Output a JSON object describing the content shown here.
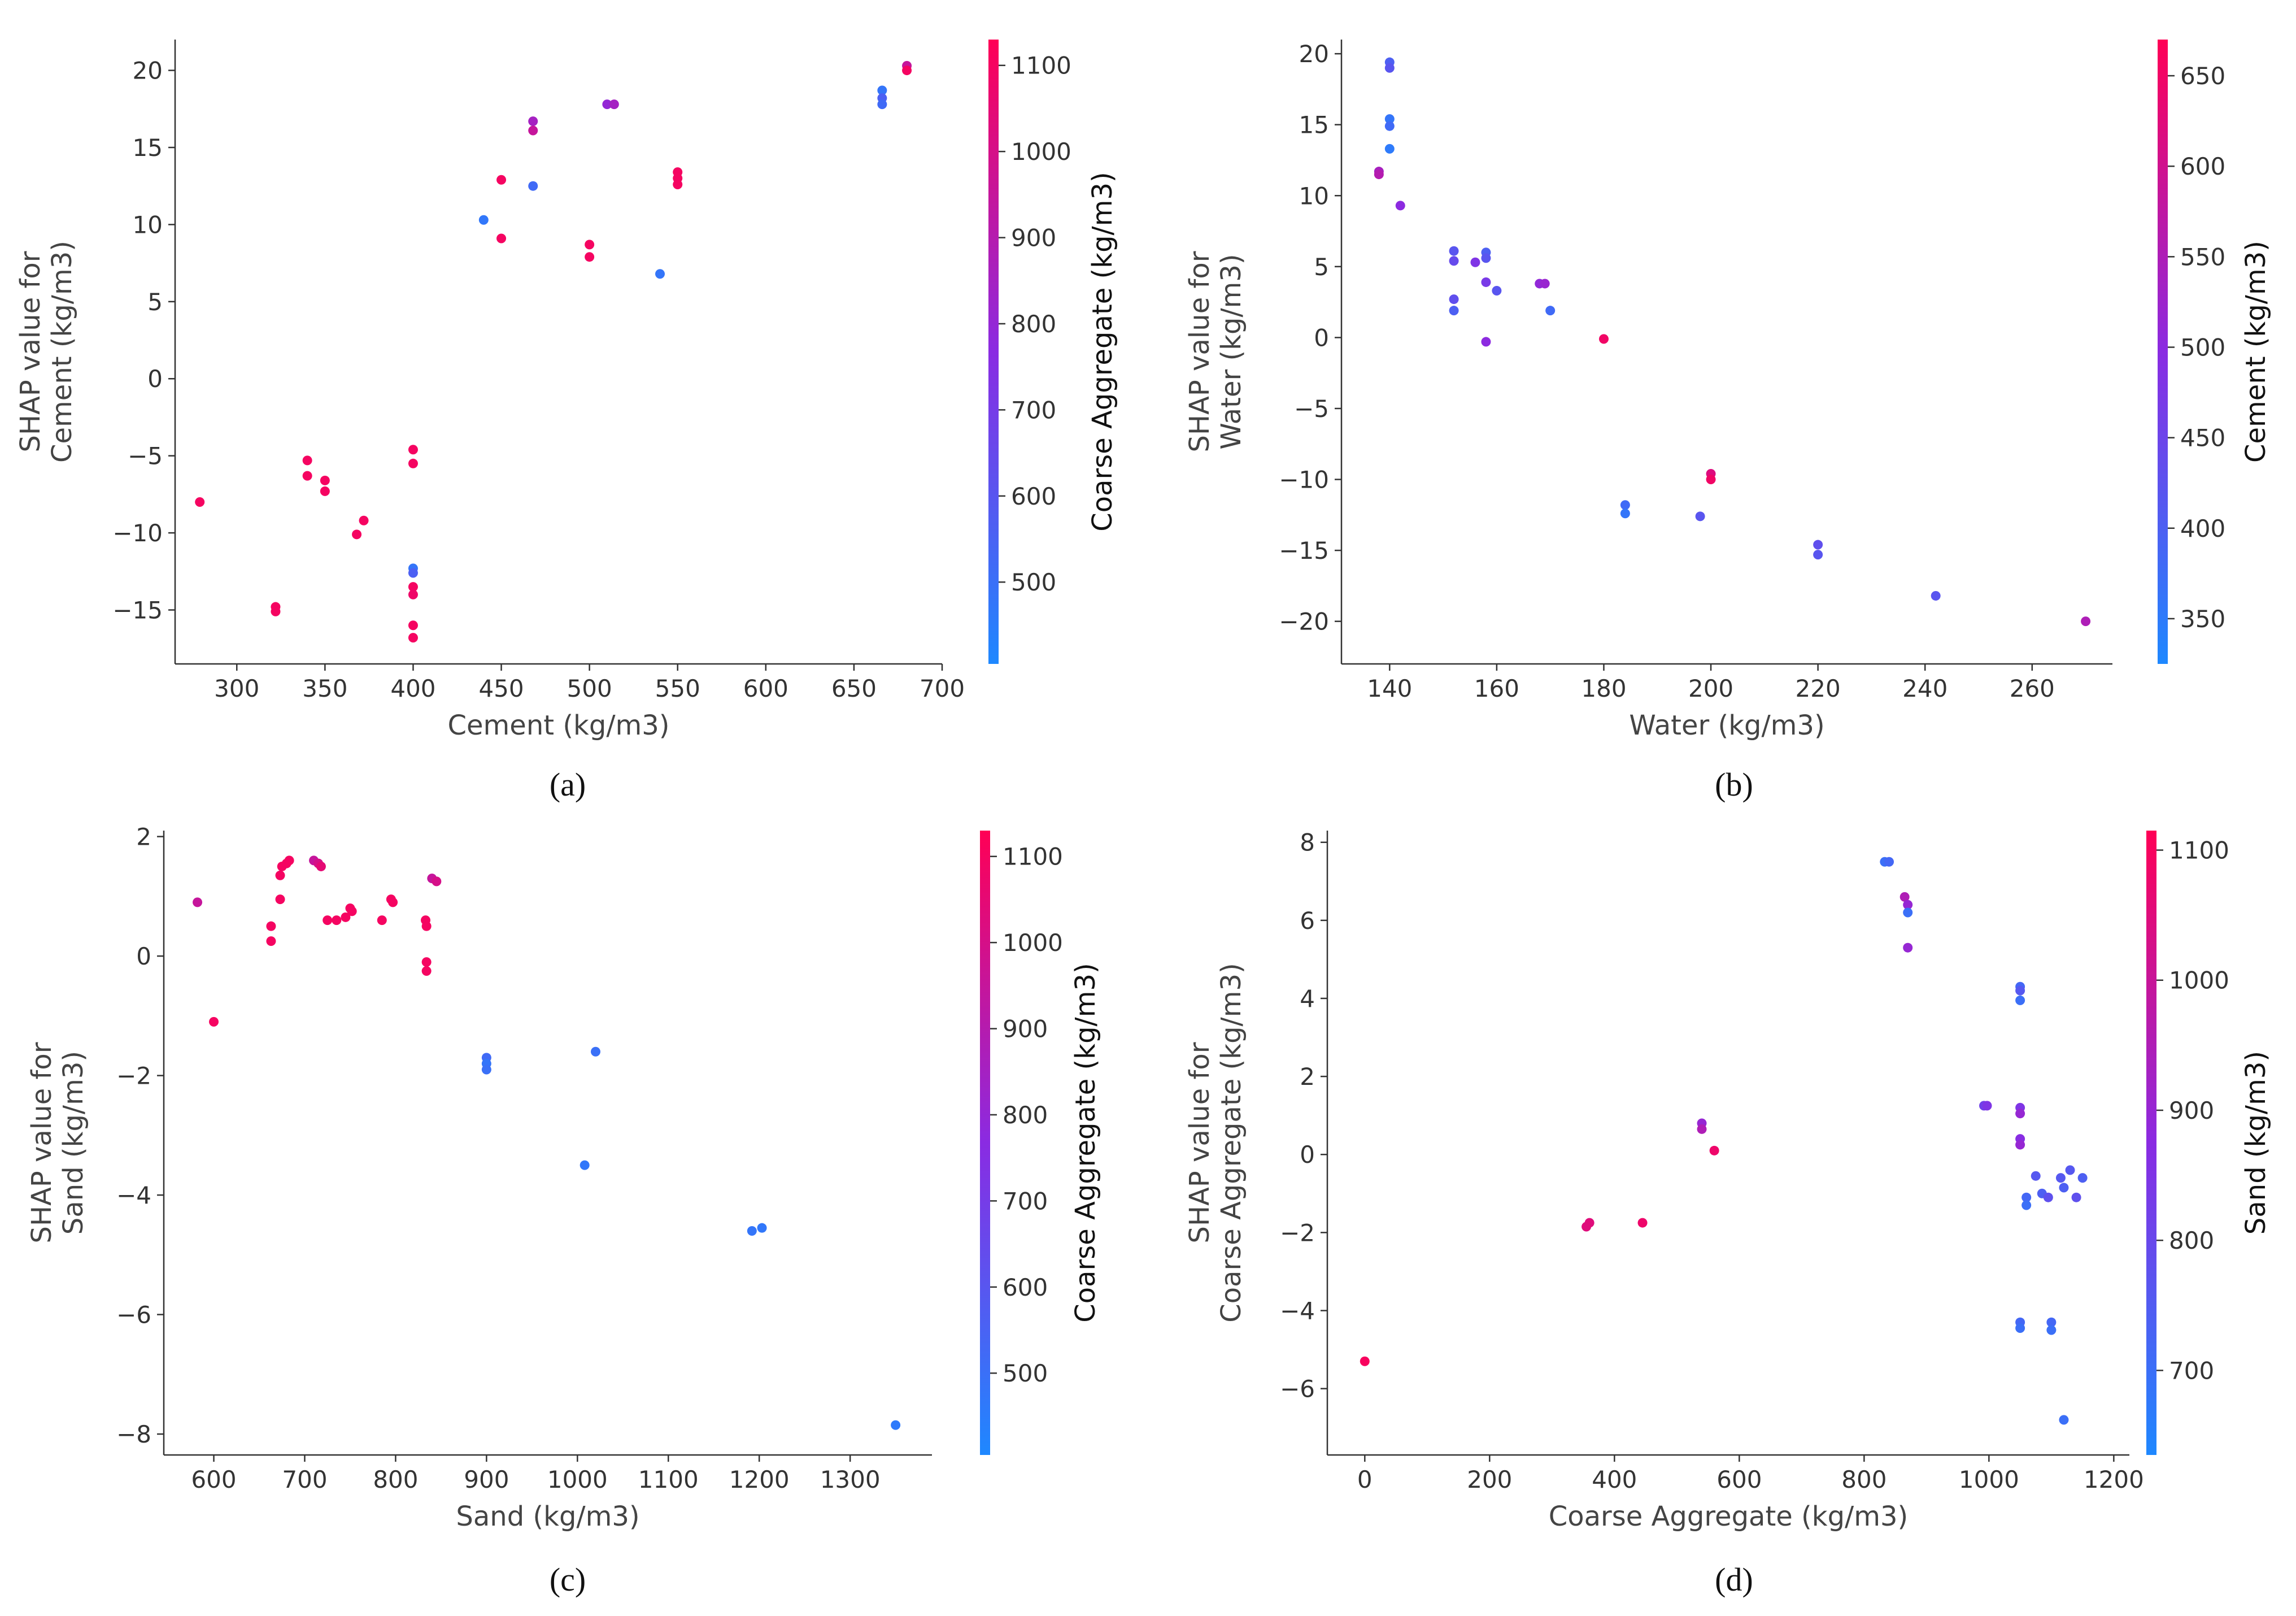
{
  "colors": {
    "cmap_low": "#1e88ff",
    "cmap_mid": "#8a2be2",
    "cmap_high": "#ff0055"
  },
  "chart_data": [
    {
      "panel": "a",
      "caption": "(a)",
      "type": "scatter",
      "xlabel": "Cement (kg/m3)",
      "ylabel_lines": [
        "SHAP value for",
        "Cement (kg/m3)"
      ],
      "colorbar_label": "Coarse Aggregate (kg/m3)",
      "xlim": [
        265,
        700
      ],
      "ylim": [
        -18.5,
        22
      ],
      "xticks": [
        300,
        350,
        400,
        450,
        500,
        550,
        600,
        650,
        700
      ],
      "yticks": [
        -15,
        -10,
        -5,
        0,
        5,
        10,
        15,
        20
      ],
      "clim": [
        405,
        1130
      ],
      "cticks": [
        500,
        600,
        700,
        800,
        900,
        1000,
        1100
      ],
      "points": [
        {
          "x": 279,
          "y": -8.0,
          "c": 1100
        },
        {
          "x": 322,
          "y": -14.8,
          "c": 1100
        },
        {
          "x": 322,
          "y": -15.1,
          "c": 1100
        },
        {
          "x": 340,
          "y": -5.3,
          "c": 1100
        },
        {
          "x": 340,
          "y": -6.3,
          "c": 1100
        },
        {
          "x": 350,
          "y": -6.6,
          "c": 1100
        },
        {
          "x": 350,
          "y": -7.3,
          "c": 1100
        },
        {
          "x": 368,
          "y": -10.1,
          "c": 1100
        },
        {
          "x": 372,
          "y": -9.2,
          "c": 1100
        },
        {
          "x": 400,
          "y": -4.6,
          "c": 1100
        },
        {
          "x": 400,
          "y": -5.5,
          "c": 1100
        },
        {
          "x": 400,
          "y": -12.3,
          "c": 480
        },
        {
          "x": 400,
          "y": -12.6,
          "c": 560
        },
        {
          "x": 400,
          "y": -13.5,
          "c": 1100
        },
        {
          "x": 400,
          "y": -14.0,
          "c": 1080
        },
        {
          "x": 400,
          "y": -16.0,
          "c": 1100
        },
        {
          "x": 400,
          "y": -16.8,
          "c": 1100
        },
        {
          "x": 440,
          "y": 10.3,
          "c": 470
        },
        {
          "x": 450,
          "y": 12.9,
          "c": 1100
        },
        {
          "x": 450,
          "y": 9.1,
          "c": 1100
        },
        {
          "x": 468,
          "y": 16.7,
          "c": 850
        },
        {
          "x": 468,
          "y": 16.1,
          "c": 950
        },
        {
          "x": 468,
          "y": 12.5,
          "c": 520
        },
        {
          "x": 500,
          "y": 8.7,
          "c": 1100
        },
        {
          "x": 500,
          "y": 7.9,
          "c": 1100
        },
        {
          "x": 510,
          "y": 17.8,
          "c": 800
        },
        {
          "x": 514,
          "y": 17.8,
          "c": 850
        },
        {
          "x": 540,
          "y": 6.8,
          "c": 480
        },
        {
          "x": 550,
          "y": 13.4,
          "c": 1100
        },
        {
          "x": 550,
          "y": 13.0,
          "c": 1100
        },
        {
          "x": 550,
          "y": 12.6,
          "c": 1100
        },
        {
          "x": 666,
          "y": 18.7,
          "c": 480
        },
        {
          "x": 666,
          "y": 18.2,
          "c": 560
        },
        {
          "x": 666,
          "y": 17.8,
          "c": 520
        },
        {
          "x": 680,
          "y": 20.3,
          "c": 950
        },
        {
          "x": 680,
          "y": 20.0,
          "c": 1100
        }
      ]
    },
    {
      "panel": "b",
      "caption": "(b)",
      "type": "scatter",
      "xlabel": "Water (kg/m3)",
      "ylabel_lines": [
        "SHAP value for",
        "Water (kg/m3)"
      ],
      "colorbar_label": "Cement (kg/m3)",
      "xlim": [
        131,
        275
      ],
      "ylim": [
        -23,
        21
      ],
      "xticks": [
        140,
        160,
        180,
        200,
        220,
        240,
        260
      ],
      "yticks": [
        -20,
        -15,
        -10,
        -5,
        0,
        5,
        10,
        15,
        20
      ],
      "clim": [
        325,
        670
      ],
      "cticks": [
        350,
        400,
        450,
        500,
        550,
        600,
        650
      ],
      "points": [
        {
          "x": 138,
          "y": 11.7,
          "c": 540
        },
        {
          "x": 138,
          "y": 11.5,
          "c": 560
        },
        {
          "x": 140,
          "y": 19.4,
          "c": 400
        },
        {
          "x": 140,
          "y": 19.0,
          "c": 420
        },
        {
          "x": 140,
          "y": 15.4,
          "c": 360
        },
        {
          "x": 140,
          "y": 14.9,
          "c": 380
        },
        {
          "x": 140,
          "y": 13.3,
          "c": 350
        },
        {
          "x": 142,
          "y": 9.3,
          "c": 500
        },
        {
          "x": 152,
          "y": 6.1,
          "c": 420
        },
        {
          "x": 152,
          "y": 5.4,
          "c": 440
        },
        {
          "x": 152,
          "y": 2.7,
          "c": 430
        },
        {
          "x": 152,
          "y": 1.9,
          "c": 400
        },
        {
          "x": 156,
          "y": 5.3,
          "c": 480
        },
        {
          "x": 158,
          "y": 6.0,
          "c": 400
        },
        {
          "x": 158,
          "y": 5.6,
          "c": 420
        },
        {
          "x": 158,
          "y": 3.9,
          "c": 470
        },
        {
          "x": 158,
          "y": -0.3,
          "c": 500
        },
        {
          "x": 160,
          "y": 3.3,
          "c": 420
        },
        {
          "x": 168,
          "y": 3.8,
          "c": 510
        },
        {
          "x": 169,
          "y": 3.8,
          "c": 520
        },
        {
          "x": 170,
          "y": 1.9,
          "c": 380
        },
        {
          "x": 180,
          "y": -0.1,
          "c": 650
        },
        {
          "x": 184,
          "y": -11.8,
          "c": 380
        },
        {
          "x": 184,
          "y": -12.4,
          "c": 360
        },
        {
          "x": 198,
          "y": -12.6,
          "c": 420
        },
        {
          "x": 200,
          "y": -9.6,
          "c": 620
        },
        {
          "x": 200,
          "y": -10.0,
          "c": 650
        },
        {
          "x": 220,
          "y": -14.6,
          "c": 430
        },
        {
          "x": 220,
          "y": -15.3,
          "c": 420
        },
        {
          "x": 242,
          "y": -18.2,
          "c": 420
        },
        {
          "x": 270,
          "y": -20.0,
          "c": 550
        }
      ]
    },
    {
      "panel": "c",
      "caption": "(c)",
      "type": "scatter",
      "xlabel": "Sand (kg/m3)",
      "ylabel_lines": [
        "SHAP value for",
        "Sand (kg/m3)"
      ],
      "colorbar_label": "Coarse Aggregate (kg/m3)",
      "xlim": [
        545,
        1390
      ],
      "ylim": [
        -8.35,
        2.1
      ],
      "xticks": [
        600,
        700,
        800,
        900,
        1000,
        1100,
        1200,
        1300
      ],
      "yticks": [
        -8,
        -6,
        -4,
        -2,
        0,
        2
      ],
      "clim": [
        405,
        1130
      ],
      "cticks": [
        500,
        600,
        700,
        800,
        900,
        1000,
        1100
      ],
      "points": [
        {
          "x": 582,
          "y": 0.9,
          "c": 950
        },
        {
          "x": 600,
          "y": -1.1,
          "c": 1100
        },
        {
          "x": 663,
          "y": 0.5,
          "c": 1100
        },
        {
          "x": 663,
          "y": 0.25,
          "c": 1100
        },
        {
          "x": 673,
          "y": 0.95,
          "c": 1100
        },
        {
          "x": 673,
          "y": 1.35,
          "c": 1100
        },
        {
          "x": 675,
          "y": 1.5,
          "c": 1100
        },
        {
          "x": 680,
          "y": 1.55,
          "c": 1100
        },
        {
          "x": 683,
          "y": 1.6,
          "c": 1100
        },
        {
          "x": 710,
          "y": 1.6,
          "c": 950
        },
        {
          "x": 715,
          "y": 1.55,
          "c": 1000
        },
        {
          "x": 718,
          "y": 1.5,
          "c": 1050
        },
        {
          "x": 725,
          "y": 0.6,
          "c": 1100
        },
        {
          "x": 735,
          "y": 0.6,
          "c": 1100
        },
        {
          "x": 745,
          "y": 0.65,
          "c": 1100
        },
        {
          "x": 750,
          "y": 0.8,
          "c": 1100
        },
        {
          "x": 752,
          "y": 0.75,
          "c": 1100
        },
        {
          "x": 785,
          "y": 0.6,
          "c": 1100
        },
        {
          "x": 795,
          "y": 0.95,
          "c": 1100
        },
        {
          "x": 797,
          "y": 0.9,
          "c": 1100
        },
        {
          "x": 833,
          "y": 0.6,
          "c": 1100
        },
        {
          "x": 834,
          "y": 0.5,
          "c": 1100
        },
        {
          "x": 834,
          "y": -0.1,
          "c": 1100
        },
        {
          "x": 834,
          "y": -0.25,
          "c": 1100
        },
        {
          "x": 840,
          "y": 1.3,
          "c": 950
        },
        {
          "x": 845,
          "y": 1.25,
          "c": 1000
        },
        {
          "x": 900,
          "y": -1.7,
          "c": 520
        },
        {
          "x": 900,
          "y": -1.8,
          "c": 480
        },
        {
          "x": 900,
          "y": -1.9,
          "c": 500
        },
        {
          "x": 1008,
          "y": -3.5,
          "c": 470
        },
        {
          "x": 1020,
          "y": -1.6,
          "c": 500
        },
        {
          "x": 1192,
          "y": -4.6,
          "c": 480
        },
        {
          "x": 1203,
          "y": -4.55,
          "c": 470
        },
        {
          "x": 1350,
          "y": -7.85,
          "c": 460
        }
      ]
    },
    {
      "panel": "d",
      "caption": "(d)",
      "type": "scatter",
      "xlabel": "Coarse Aggregate (kg/m3)",
      "ylabel_lines": [
        "SHAP value for",
        "Coarse Aggregate (kg/m3)"
      ],
      "colorbar_label": "Sand (kg/m3)",
      "xlim": [
        -60,
        1225
      ],
      "ylim": [
        -7.7,
        8.3
      ],
      "xticks": [
        0,
        200,
        400,
        600,
        800,
        1000,
        1200
      ],
      "yticks": [
        -6,
        -4,
        -2,
        0,
        2,
        4,
        6,
        8
      ],
      "clim": [
        635,
        1115
      ],
      "cticks": [
        700,
        800,
        900,
        1000,
        1100
      ],
      "points": [
        {
          "x": 0,
          "y": -5.3,
          "c": 1100
        },
        {
          "x": 355,
          "y": -1.85,
          "c": 1050
        },
        {
          "x": 360,
          "y": -1.75,
          "c": 1050
        },
        {
          "x": 445,
          "y": -1.75,
          "c": 1080
        },
        {
          "x": 540,
          "y": 0.8,
          "c": 900
        },
        {
          "x": 540,
          "y": 0.65,
          "c": 950
        },
        {
          "x": 560,
          "y": 0.1,
          "c": 1080
        },
        {
          "x": 833,
          "y": 7.5,
          "c": 700
        },
        {
          "x": 840,
          "y": 7.5,
          "c": 720
        },
        {
          "x": 865,
          "y": 6.6,
          "c": 950
        },
        {
          "x": 870,
          "y": 6.4,
          "c": 900
        },
        {
          "x": 870,
          "y": 6.2,
          "c": 700
        },
        {
          "x": 870,
          "y": 5.3,
          "c": 900
        },
        {
          "x": 992,
          "y": 1.25,
          "c": 820
        },
        {
          "x": 997,
          "y": 1.25,
          "c": 850
        },
        {
          "x": 1050,
          "y": 4.3,
          "c": 720
        },
        {
          "x": 1050,
          "y": 4.2,
          "c": 760
        },
        {
          "x": 1050,
          "y": 3.95,
          "c": 700
        },
        {
          "x": 1050,
          "y": 1.2,
          "c": 850
        },
        {
          "x": 1050,
          "y": 1.05,
          "c": 900
        },
        {
          "x": 1050,
          "y": 0.4,
          "c": 870
        },
        {
          "x": 1050,
          "y": 0.25,
          "c": 900
        },
        {
          "x": 1050,
          "y": -4.3,
          "c": 720
        },
        {
          "x": 1050,
          "y": -4.45,
          "c": 700
        },
        {
          "x": 1060,
          "y": -1.1,
          "c": 720
        },
        {
          "x": 1060,
          "y": -1.3,
          "c": 700
        },
        {
          "x": 1075,
          "y": -0.55,
          "c": 760
        },
        {
          "x": 1085,
          "y": -1.0,
          "c": 740
        },
        {
          "x": 1095,
          "y": -1.1,
          "c": 780
        },
        {
          "x": 1100,
          "y": -4.3,
          "c": 720
        },
        {
          "x": 1100,
          "y": -4.5,
          "c": 700
        },
        {
          "x": 1115,
          "y": -0.6,
          "c": 760
        },
        {
          "x": 1120,
          "y": -0.85,
          "c": 740
        },
        {
          "x": 1120,
          "y": -6.8,
          "c": 700
        },
        {
          "x": 1130,
          "y": -0.4,
          "c": 760
        },
        {
          "x": 1140,
          "y": -1.1,
          "c": 780
        },
        {
          "x": 1150,
          "y": -0.6,
          "c": 740
        }
      ]
    }
  ]
}
